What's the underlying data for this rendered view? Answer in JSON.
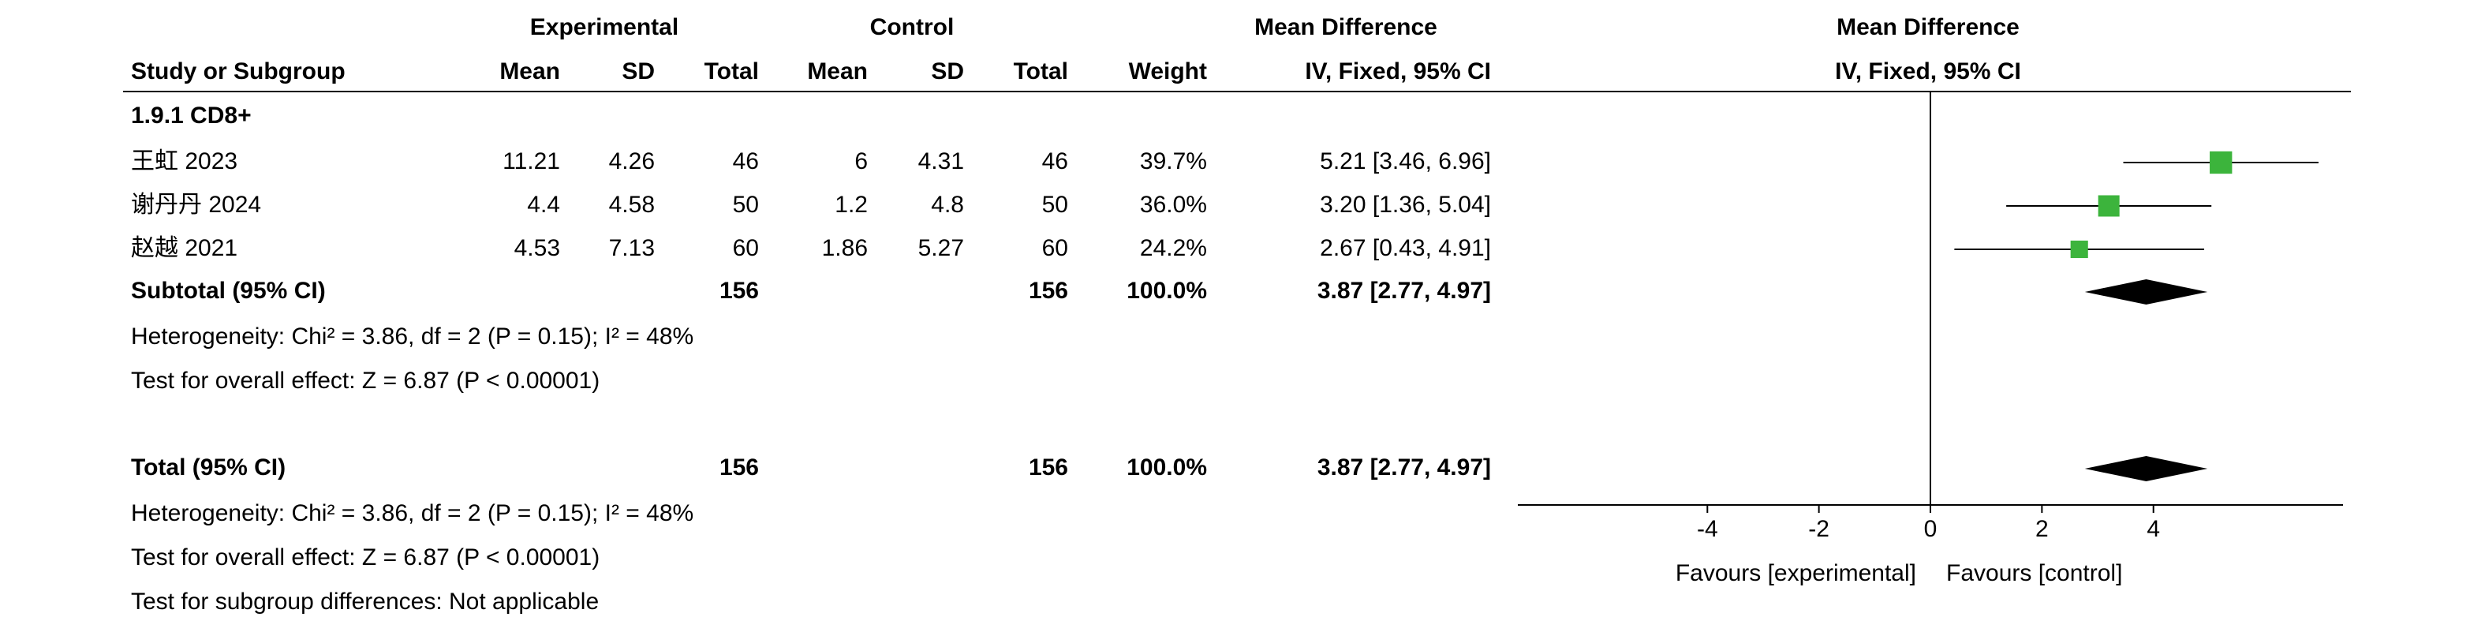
{
  "chart_data": {
    "type": "forest",
    "headers": {
      "experimental": "Experimental",
      "control": "Control",
      "effect": "Mean Difference",
      "plot_effect": "Mean Difference",
      "plot_method": "IV, Fixed, 95% CI"
    },
    "columns": [
      "Study or Subgroup",
      "Mean",
      "SD",
      "Total",
      "Mean",
      "SD",
      "Total",
      "Weight",
      "IV, Fixed, 95% CI"
    ],
    "subgroup": "1.9.1 CD8+",
    "color": "#3cb43c",
    "studies": [
      {
        "name": "王虹 2023",
        "exp_mean": 11.21,
        "exp_sd": 4.26,
        "exp_total": 46,
        "ctl_mean": 6,
        "ctl_sd": 4.31,
        "ctl_total": 46,
        "weight": 39.7,
        "weight_label": "39.7%",
        "md": 5.21,
        "lower": 3.46,
        "upper": 6.96,
        "ci_label": "5.21 [3.46, 6.96]"
      },
      {
        "name": "谢丹丹 2024",
        "exp_mean": 4.4,
        "exp_sd": 4.58,
        "exp_total": 50,
        "ctl_mean": 1.2,
        "ctl_sd": 4.8,
        "ctl_total": 50,
        "weight": 36,
        "weight_label": "36.0%",
        "md": 3.2,
        "lower": 1.36,
        "upper": 5.04,
        "ci_label": "3.20 [1.36, 5.04]"
      },
      {
        "name": "赵越 2021",
        "exp_mean": 4.53,
        "exp_sd": 7.13,
        "exp_total": 60,
        "ctl_mean": 1.86,
        "ctl_sd": 5.27,
        "ctl_total": 60,
        "weight": 24.2,
        "weight_label": "24.2%",
        "md": 2.67,
        "lower": 0.43,
        "upper": 4.91,
        "ci_label": "2.67 [0.43, 4.91]"
      }
    ],
    "subtotal": {
      "label": "Subtotal (95% CI)",
      "exp_total": 156,
      "ctl_total": 156,
      "weight": 100,
      "weight_label": "100.0%",
      "md": 3.87,
      "lower": 2.77,
      "upper": 4.97,
      "ci_label": "3.87 [2.77, 4.97]",
      "heterogeneity": "Heterogeneity: Chi² = 3.86, df = 2 (P = 0.15); I² = 48%",
      "overall": "Test for overall effect: Z = 6.87 (P < 0.00001)"
    },
    "total": {
      "label": "Total (95% CI)",
      "exp_total": 156,
      "ctl_total": 156,
      "weight": 100,
      "weight_label": "100.0%",
      "md": 3.87,
      "lower": 2.77,
      "upper": 4.97,
      "ci_label": "3.87 [2.77, 4.97]",
      "heterogeneity": "Heterogeneity: Chi² = 3.86, df = 2 (P = 0.15); I² = 48%",
      "overall": "Test for overall effect: Z = 6.87 (P < 0.00001)",
      "subgroup_diff": "Test for subgroup differences: Not applicable"
    },
    "xlim": [
      -7.4,
      7.4
    ],
    "xticks": [
      -4,
      -2,
      0,
      2,
      4
    ],
    "xlabel_left": "Favours [experimental]",
    "xlabel_right": "Favours [control]"
  }
}
